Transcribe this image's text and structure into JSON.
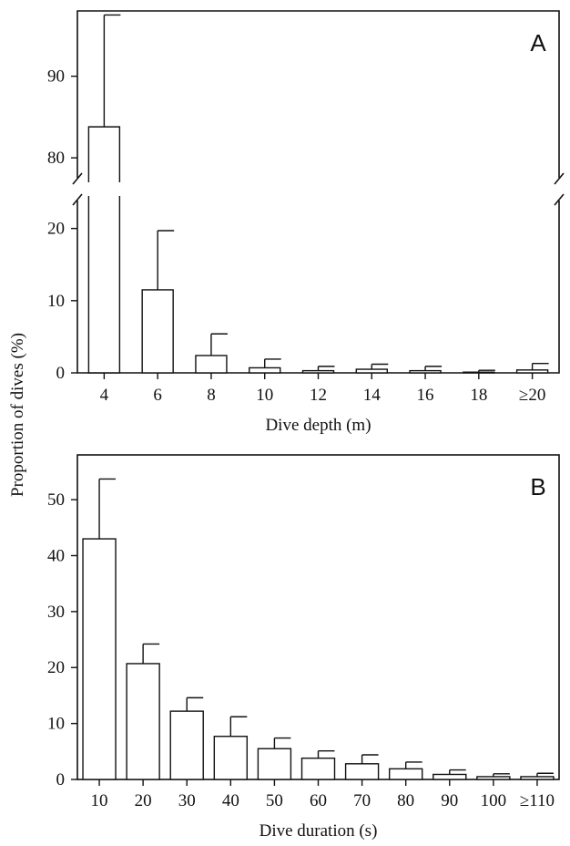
{
  "figure": {
    "ylabel": "Proportion of dives (%)"
  },
  "chart_data": [
    {
      "type": "bar",
      "panel_label": "A",
      "xlabel": "Dive depth (m)",
      "categories": [
        "4",
        "6",
        "8",
        "10",
        "12",
        "14",
        "16",
        "18",
        "≥20"
      ],
      "values": [
        83.8,
        11.5,
        2.4,
        0.7,
        0.3,
        0.5,
        0.3,
        0.1,
        0.4
      ],
      "error_upper": [
        97.5,
        19.7,
        5.4,
        1.9,
        0.9,
        1.2,
        0.9,
        0.35,
        1.3
      ],
      "axis_break": {
        "lower_range": [
          0,
          24.5
        ],
        "upper_range": [
          77,
          98
        ]
      },
      "yticks_lower": [
        0,
        10,
        20
      ],
      "yticks_upper": [
        80,
        90
      ]
    },
    {
      "type": "bar",
      "panel_label": "B",
      "xlabel": "Dive duration (s)",
      "categories": [
        "10",
        "20",
        "30",
        "40",
        "50",
        "60",
        "70",
        "80",
        "90",
        "100",
        "≥110"
      ],
      "values": [
        43.0,
        20.7,
        12.2,
        7.7,
        5.5,
        3.8,
        2.8,
        1.9,
        0.9,
        0.5,
        0.5
      ],
      "error_upper": [
        53.7,
        24.2,
        14.6,
        11.2,
        7.4,
        5.1,
        4.4,
        3.1,
        1.7,
        1.0,
        1.1
      ],
      "ylim": [
        0,
        58
      ],
      "yticks": [
        0,
        10,
        20,
        30,
        40,
        50
      ]
    }
  ]
}
